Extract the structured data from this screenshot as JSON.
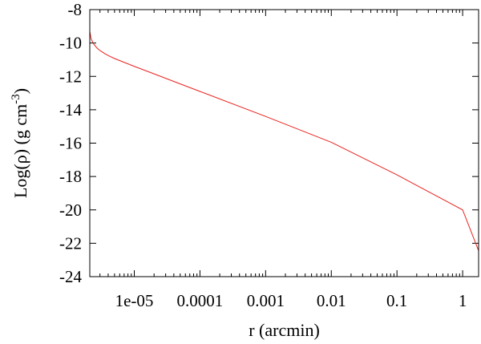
{
  "chart_data": {
    "type": "line",
    "xscale": "log",
    "xlabel": "r (arcmin)",
    "ylabel_main": "Log(ρ) (g cm",
    "ylabel_sup": "-3",
    "ylabel_close": ")",
    "xlim": [
      2.1e-06,
      1.75
    ],
    "ylim": [
      -24,
      -8
    ],
    "x_ticks": [
      {
        "value": 1e-05,
        "label": "1e-05"
      },
      {
        "value": 0.0001,
        "label": "0.0001"
      },
      {
        "value": 0.001,
        "label": "0.001"
      },
      {
        "value": 0.01,
        "label": "0.01"
      },
      {
        "value": 0.1,
        "label": "0.1"
      },
      {
        "value": 1,
        "label": "1"
      }
    ],
    "y_ticks": [
      {
        "value": -8,
        "label": "-8"
      },
      {
        "value": -10,
        "label": "-10"
      },
      {
        "value": -12,
        "label": "-12"
      },
      {
        "value": -14,
        "label": "-14"
      },
      {
        "value": -16,
        "label": "-16"
      },
      {
        "value": -18,
        "label": "-18"
      },
      {
        "value": -20,
        "label": "-20"
      },
      {
        "value": -22,
        "label": "-22"
      },
      {
        "value": -24,
        "label": "-24"
      }
    ],
    "grid": false,
    "series": [
      {
        "color": "#e8221e",
        "x": [
          2.1e-06,
          2.2e-06,
          2.4e-06,
          2.7e-06,
          3e-06,
          3.5e-06,
          4e-06,
          5e-06,
          7e-06,
          1e-05,
          2e-05,
          5e-05,
          0.0001,
          0.001,
          0.01,
          0.1,
          1,
          1.75
        ],
        "y": [
          -9.3,
          -9.75,
          -10.05,
          -10.3,
          -10.45,
          -10.62,
          -10.75,
          -10.93,
          -11.16,
          -11.4,
          -11.85,
          -12.45,
          -12.9,
          -14.4,
          -15.95,
          -17.9,
          -20.0,
          -22.45
        ]
      }
    ]
  }
}
